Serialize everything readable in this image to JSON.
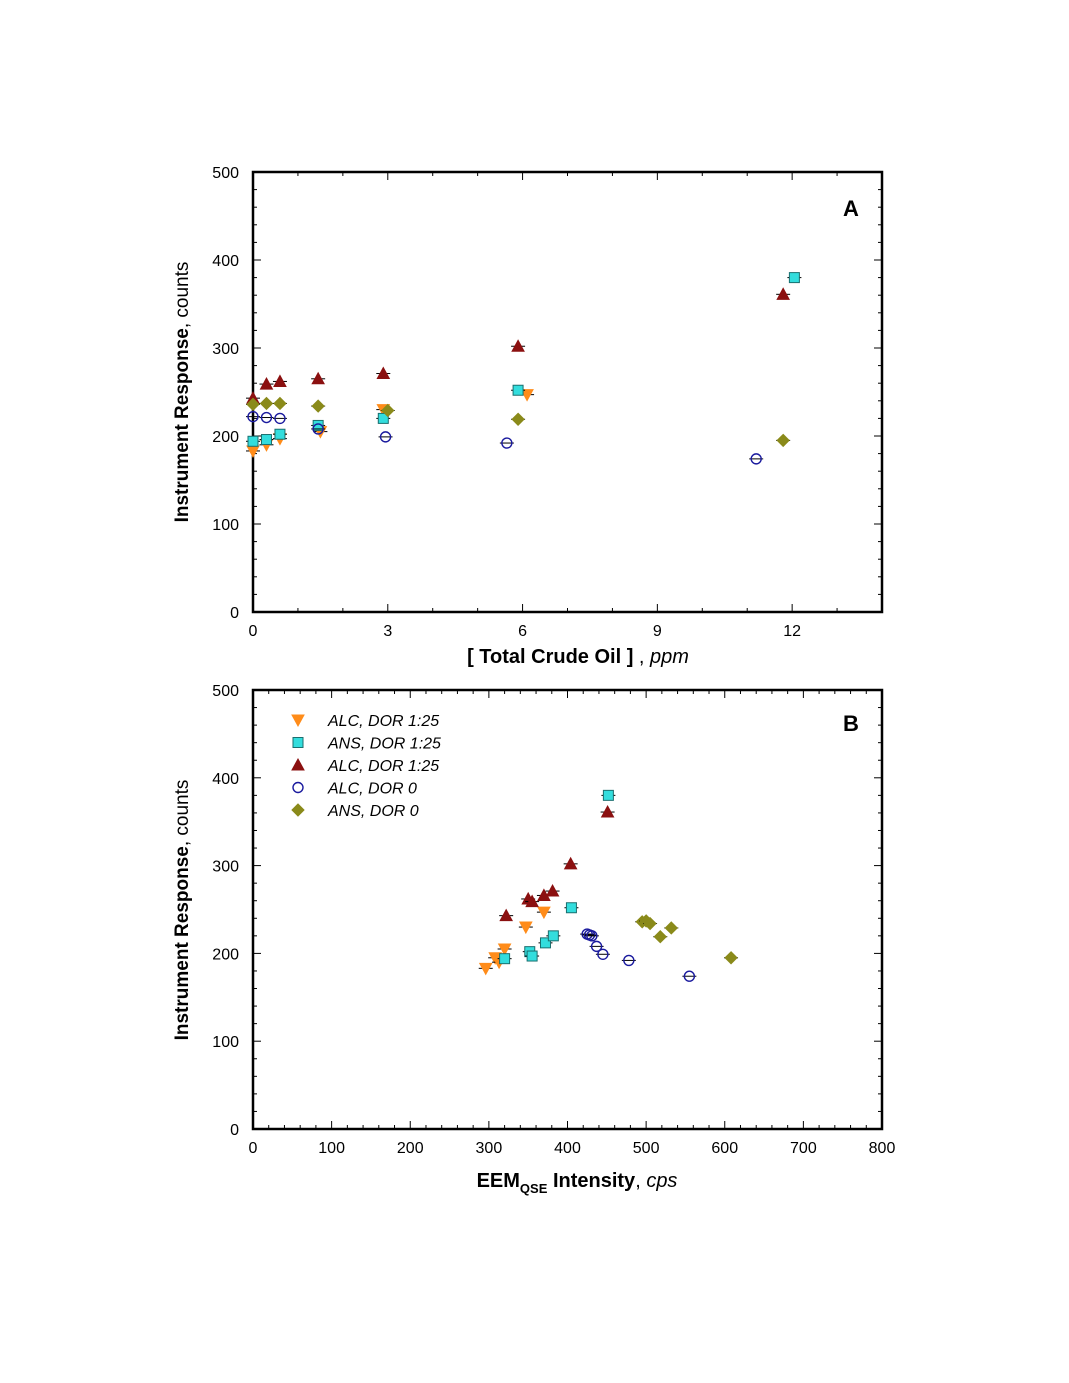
{
  "chart_data": [
    {
      "type": "scatter",
      "panel_label": "A",
      "xlabel": "[ Total Crude Oil ]",
      "xlabel_unit": "ppm",
      "ylabel": "Instrument Response",
      "ylabel_unit": "counts",
      "xlim": [
        0,
        14
      ],
      "ylim": [
        0,
        500
      ],
      "xticks": [
        0,
        3,
        6,
        9,
        12
      ],
      "yticks": [
        0,
        100,
        200,
        300,
        400,
        500
      ],
      "series": [
        {
          "marker": "triangle-down",
          "color": "#FF8C1A",
          "x": [
            0,
            0.3,
            0.6,
            1.5,
            2.9,
            6.1
          ],
          "y": [
            183,
            190,
            197,
            205,
            230,
            247
          ]
        },
        {
          "marker": "square",
          "color": "#33DDDD",
          "x": [
            0,
            0.3,
            0.6,
            1.45,
            2.9,
            5.9,
            12.05
          ],
          "y": [
            194,
            196,
            202,
            212,
            220,
            252,
            380
          ]
        },
        {
          "marker": "triangle-up",
          "color": "#8B1010",
          "x": [
            0,
            0.3,
            0.6,
            1.45,
            2.9,
            5.9,
            11.8
          ],
          "y": [
            243,
            259,
            262,
            265,
            271,
            302,
            361
          ]
        },
        {
          "marker": "circle-open",
          "color": "#1A1A9E",
          "x": [
            0,
            0.3,
            0.6,
            1.45,
            2.95,
            5.65,
            11.2
          ],
          "y": [
            222,
            221,
            220,
            208,
            199,
            192,
            174
          ]
        },
        {
          "marker": "diamond",
          "color": "#8A8A1A",
          "x": [
            0,
            0.3,
            0.6,
            1.45,
            3.0,
            5.9,
            11.8
          ],
          "y": [
            236,
            237,
            237,
            234,
            229,
            219,
            195
          ]
        }
      ]
    },
    {
      "type": "scatter",
      "panel_label": "B",
      "xlabel": "EEM",
      "xlabel_sub": "QSE",
      "xlabel_rest": "Intensity",
      "xlabel_unit": "cps",
      "ylabel": "Instrument Response",
      "ylabel_unit": "counts",
      "xlim": [
        0,
        800
      ],
      "ylim": [
        0,
        500
      ],
      "xticks": [
        0,
        100,
        200,
        300,
        400,
        500,
        600,
        700,
        800
      ],
      "yticks": [
        0,
        100,
        200,
        300,
        400,
        500
      ],
      "legend_position": "top-left",
      "series": [
        {
          "name": "ALC, DOR 1:25",
          "marker": "triangle-down",
          "color": "#FF8C1A",
          "x": [
            296,
            308,
            313,
            320,
            347,
            370
          ],
          "y": [
            183,
            195,
            190,
            205,
            230,
            247
          ]
        },
        {
          "name": "ANS, DOR 1:25",
          "marker": "square",
          "color": "#33DDDD",
          "x": [
            320,
            352,
            355,
            372,
            382,
            405,
            452
          ],
          "y": [
            194,
            202,
            197,
            212,
            220,
            252,
            380
          ]
        },
        {
          "name": "ALC, DOR 1:25",
          "marker": "triangle-up",
          "color": "#8B1010",
          "x": [
            322,
            350,
            355,
            370,
            381,
            404,
            451
          ],
          "y": [
            243,
            262,
            259,
            266,
            271,
            302,
            361
          ]
        },
        {
          "name": "ALC, DOR 0",
          "marker": "circle-open",
          "color": "#1A1A9E",
          "x": [
            425,
            428,
            431,
            437,
            445,
            478,
            555
          ],
          "y": [
            222,
            221,
            220,
            208,
            199,
            192,
            174
          ]
        },
        {
          "name": "ANS, DOR 0",
          "marker": "diamond",
          "color": "#8A8A1A",
          "x": [
            495,
            500,
            505,
            518,
            532,
            608
          ],
          "y": [
            236,
            237,
            234,
            219,
            229,
            195
          ]
        }
      ]
    }
  ]
}
